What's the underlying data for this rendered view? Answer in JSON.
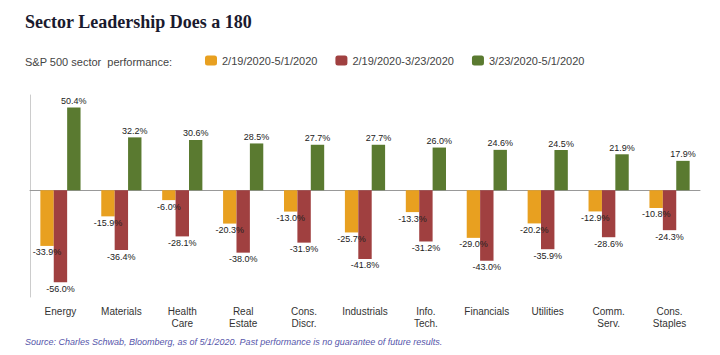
{
  "chart_data": {
    "type": "bar",
    "title": "Sector Leadership Does a 180",
    "legend_title": "S&P 500 sector  performance:",
    "source": "Source: Charles Schwab, Bloomberg, as of 5/1/2020. Past performance is no guarantee of future results.",
    "categories": [
      "Energy",
      "Materials",
      "Health\nCare",
      "Real\nEstate",
      "Cons.\nDiscr.",
      "Industrials",
      "Info.\nTech.",
      "Financials",
      "Utilities",
      "Comm.\nServ.",
      "Cons.\nStaples"
    ],
    "series": [
      {
        "name": "2/19/2020-5/1/2020",
        "color": "#E8A020",
        "values": [
          -33.9,
          -15.9,
          -6.0,
          -20.3,
          -13.0,
          -25.7,
          -13.3,
          -29.0,
          -20.2,
          -12.9,
          -10.8
        ],
        "value_labels": [
          "-33.9%",
          "-15.9%",
          "-6.0%",
          "-20.3%",
          "-13.0%",
          "-25.7%",
          "-13.3%",
          "-29.0%",
          "-20.2%",
          "-12.9%",
          "-10.8%"
        ]
      },
      {
        "name": "2/19/2020-3/23/2020",
        "color": "#A04040",
        "values": [
          -56.0,
          -36.4,
          -28.1,
          -38.0,
          -31.9,
          -41.8,
          -31.2,
          -43.0,
          -35.9,
          -28.6,
          -24.3
        ],
        "value_labels": [
          "-56.0%",
          "-36.4%",
          "-28.1%",
          "-38.0%",
          "-31.9%",
          "-41.8%",
          "-31.2%",
          "-43.0%",
          "-35.9%",
          "-28.6%",
          "-24.3%"
        ]
      },
      {
        "name": "3/23/2020-5/1/2020",
        "color": "#5A7A30",
        "values": [
          50.4,
          32.2,
          30.6,
          28.5,
          27.7,
          27.7,
          26.0,
          24.6,
          24.5,
          21.9,
          17.9
        ],
        "value_labels": [
          "50.4%",
          "32.2%",
          "30.6%",
          "28.5%",
          "27.7%",
          "27.7%",
          "26.0%",
          "24.6%",
          "24.5%",
          "21.9%",
          "17.9%"
        ]
      }
    ],
    "ylim": [
      -65,
      58
    ],
    "grid": false,
    "legend": "top",
    "data_labels": true,
    "tick_labels": "x"
  }
}
